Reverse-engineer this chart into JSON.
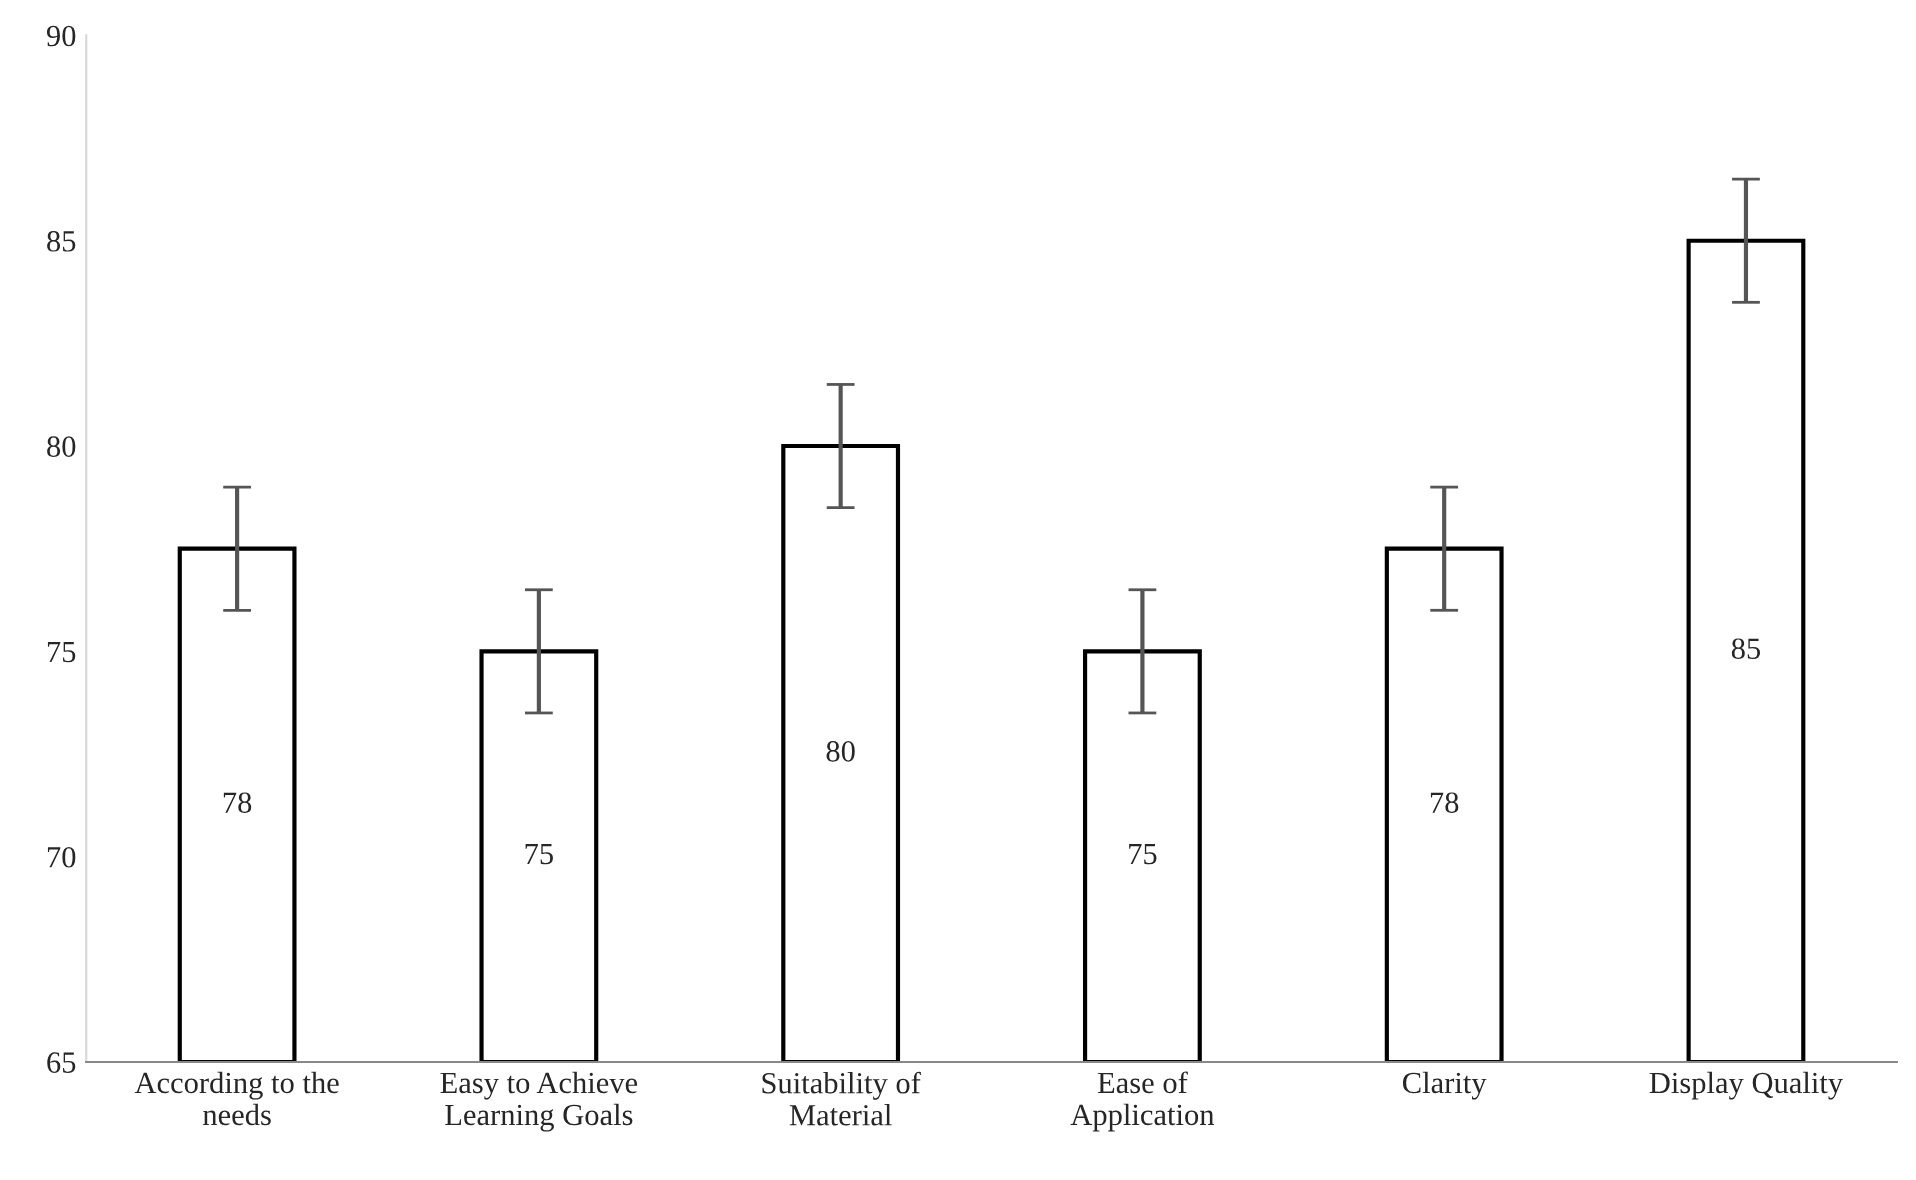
{
  "chart_data": {
    "type": "bar",
    "categories": [
      "According to the needs",
      "Easy to Achieve Learning Goals",
      "Suitability of Material",
      "Ease of Application",
      "Clarity",
      "Display Quality"
    ],
    "values": [
      77.5,
      75,
      80,
      75,
      77.5,
      85
    ],
    "value_labels": [
      "78",
      "75",
      "80",
      "75",
      "78",
      "85"
    ],
    "errors": [
      1.5,
      1.5,
      1.5,
      1.5,
      1.5,
      1.5
    ],
    "color": "#ffffff",
    "ylim": [
      65,
      90
    ],
    "yticks": [
      65,
      70,
      75,
      80,
      85,
      90
    ],
    "grid": false,
    "legend": false
  }
}
